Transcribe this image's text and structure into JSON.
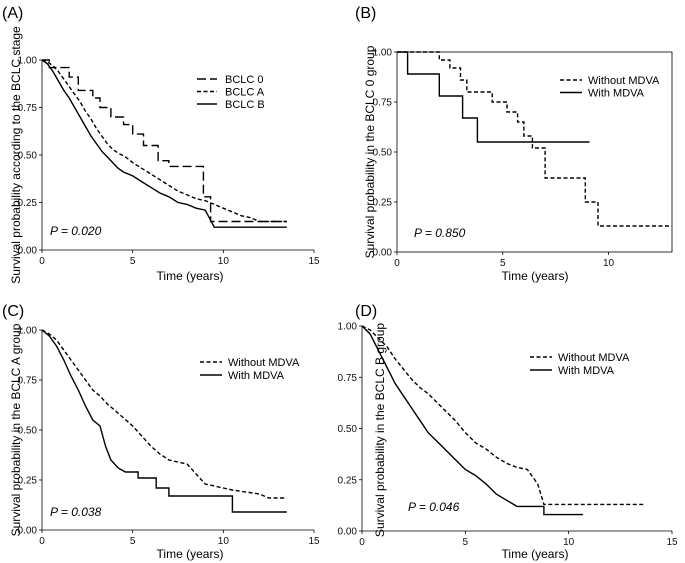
{
  "chart_data": [
    {
      "type": "line",
      "panel_label": "(A)",
      "xlabel": "Time (years)",
      "ylabel": "Survival probability according to the BCLC stage",
      "xlim": [
        0,
        15
      ],
      "ylim": [
        0,
        1
      ],
      "xticks": [
        "0",
        "5",
        "10",
        "15"
      ],
      "yticks": [
        "0.00",
        "0.25",
        "0.50",
        "0.75",
        "1.00"
      ],
      "annotation": "P = 0.020",
      "series": [
        {
          "name": "BCLC 0",
          "dash": "longdash",
          "points": [
            [
              0,
              1
            ],
            [
              0.4,
              1
            ],
            [
              0.4,
              0.96
            ],
            [
              1.5,
              0.96
            ],
            [
              1.5,
              0.91
            ],
            [
              2,
              0.91
            ],
            [
              2,
              0.84
            ],
            [
              2.8,
              0.84
            ],
            [
              2.8,
              0.8
            ],
            [
              3.2,
              0.8
            ],
            [
              3.2,
              0.75
            ],
            [
              3.8,
              0.75
            ],
            [
              3.8,
              0.7
            ],
            [
              4.5,
              0.7
            ],
            [
              4.5,
              0.66
            ],
            [
              5,
              0.66
            ],
            [
              5,
              0.61
            ],
            [
              5.6,
              0.61
            ],
            [
              5.6,
              0.55
            ],
            [
              6.4,
              0.55
            ],
            [
              6.4,
              0.47
            ],
            [
              7,
              0.47
            ],
            [
              7,
              0.44
            ],
            [
              8.9,
              0.44
            ],
            [
              8.9,
              0.28
            ],
            [
              9.3,
              0.28
            ],
            [
              9.3,
              0.15
            ],
            [
              13.5,
              0.15
            ]
          ]
        },
        {
          "name": "BCLC A",
          "dash": "dashed",
          "points": [
            [
              0,
              1
            ],
            [
              0.3,
              0.99
            ],
            [
              0.6,
              0.97
            ],
            [
              0.9,
              0.94
            ],
            [
              1.2,
              0.9
            ],
            [
              1.5,
              0.86
            ],
            [
              1.8,
              0.82
            ],
            [
              2.1,
              0.78
            ],
            [
              2.4,
              0.73
            ],
            [
              2.7,
              0.69
            ],
            [
              3,
              0.64
            ],
            [
              3.3,
              0.6
            ],
            [
              3.6,
              0.56
            ],
            [
              3.9,
              0.53
            ],
            [
              4.2,
              0.51
            ],
            [
              4.6,
              0.49
            ],
            [
              5,
              0.46
            ],
            [
              5.5,
              0.43
            ],
            [
              6,
              0.4
            ],
            [
              6.5,
              0.37
            ],
            [
              7,
              0.34
            ],
            [
              7.5,
              0.31
            ],
            [
              8,
              0.29
            ],
            [
              8.5,
              0.27
            ],
            [
              9,
              0.26
            ],
            [
              9.5,
              0.24
            ],
            [
              10,
              0.22
            ],
            [
              10.5,
              0.2
            ],
            [
              11,
              0.18
            ],
            [
              11.5,
              0.17
            ],
            [
              12,
              0.15
            ],
            [
              13.5,
              0.15
            ]
          ]
        },
        {
          "name": "BCLC B",
          "dash": "solid",
          "points": [
            [
              0,
              1
            ],
            [
              0.3,
              0.98
            ],
            [
              0.6,
              0.94
            ],
            [
              0.9,
              0.89
            ],
            [
              1.2,
              0.84
            ],
            [
              1.5,
              0.8
            ],
            [
              1.8,
              0.75
            ],
            [
              2.1,
              0.7
            ],
            [
              2.4,
              0.65
            ],
            [
              2.7,
              0.6
            ],
            [
              3,
              0.56
            ],
            [
              3.3,
              0.52
            ],
            [
              3.6,
              0.49
            ],
            [
              3.9,
              0.46
            ],
            [
              4.2,
              0.43
            ],
            [
              4.5,
              0.41
            ],
            [
              5,
              0.39
            ],
            [
              5.5,
              0.36
            ],
            [
              6,
              0.33
            ],
            [
              6.5,
              0.3
            ],
            [
              7,
              0.28
            ],
            [
              7.5,
              0.25
            ],
            [
              8,
              0.24
            ],
            [
              8.5,
              0.22
            ],
            [
              9,
              0.21
            ],
            [
              9.5,
              0.12
            ],
            [
              13.5,
              0.12
            ]
          ]
        }
      ]
    },
    {
      "type": "line",
      "panel_label": "(B)",
      "xlabel": "Time (years)",
      "ylabel": "Survival probability in the BCLC 0 group",
      "xlim": [
        0,
        13
      ],
      "ylim": [
        0,
        1
      ],
      "xticks": [
        "0",
        "5",
        "10"
      ],
      "yticks": [
        "0.00",
        "0.25",
        "0.50",
        "0.75",
        "1.00"
      ],
      "annotation": "P = 0.850",
      "series": [
        {
          "name": "Without MDVA",
          "dash": "dashed",
          "points": [
            [
              0,
              1
            ],
            [
              2,
              1
            ],
            [
              2,
              0.96
            ],
            [
              2.5,
              0.96
            ],
            [
              2.5,
              0.92
            ],
            [
              3,
              0.92
            ],
            [
              3,
              0.86
            ],
            [
              3.3,
              0.86
            ],
            [
              3.3,
              0.8
            ],
            [
              4.5,
              0.8
            ],
            [
              4.5,
              0.75
            ],
            [
              5.2,
              0.75
            ],
            [
              5.2,
              0.7
            ],
            [
              5.7,
              0.7
            ],
            [
              5.7,
              0.65
            ],
            [
              6,
              0.65
            ],
            [
              6,
              0.58
            ],
            [
              6.4,
              0.58
            ],
            [
              6.4,
              0.52
            ],
            [
              7,
              0.52
            ],
            [
              7,
              0.37
            ],
            [
              8.9,
              0.37
            ],
            [
              8.9,
              0.25
            ],
            [
              9.5,
              0.25
            ],
            [
              9.5,
              0.13
            ],
            [
              13,
              0.13
            ]
          ]
        },
        {
          "name": "With MDVA",
          "dash": "solid",
          "points": [
            [
              0,
              1
            ],
            [
              0.5,
              1
            ],
            [
              0.5,
              0.89
            ],
            [
              2,
              0.89
            ],
            [
              2,
              0.78
            ],
            [
              3.1,
              0.78
            ],
            [
              3.1,
              0.67
            ],
            [
              3.8,
              0.67
            ],
            [
              3.8,
              0.55
            ],
            [
              9.1,
              0.55
            ]
          ]
        }
      ]
    },
    {
      "type": "line",
      "panel_label": "(C)",
      "xlabel": "Time (years)",
      "ylabel": "Survival probability in the BCLC A group",
      "xlim": [
        0,
        15
      ],
      "ylim": [
        0,
        1
      ],
      "xticks": [
        "0",
        "5",
        "10",
        "15"
      ],
      "yticks": [
        "0.00",
        "0.25",
        "0.50",
        "0.75",
        "1.00"
      ],
      "annotation": "P = 0.038",
      "series": [
        {
          "name": "Without MDVA",
          "dash": "dashed",
          "points": [
            [
              0,
              1
            ],
            [
              0.4,
              0.98
            ],
            [
              0.8,
              0.95
            ],
            [
              1.2,
              0.9
            ],
            [
              1.6,
              0.85
            ],
            [
              2,
              0.8
            ],
            [
              2.4,
              0.75
            ],
            [
              2.8,
              0.7
            ],
            [
              3.2,
              0.67
            ],
            [
              3.6,
              0.63
            ],
            [
              4,
              0.6
            ],
            [
              4.5,
              0.56
            ],
            [
              5,
              0.52
            ],
            [
              5.5,
              0.47
            ],
            [
              6,
              0.42
            ],
            [
              6.5,
              0.38
            ],
            [
              7,
              0.35
            ],
            [
              7.5,
              0.34
            ],
            [
              8,
              0.33
            ],
            [
              8.5,
              0.28
            ],
            [
              9,
              0.23
            ],
            [
              9.5,
              0.22
            ],
            [
              10,
              0.21
            ],
            [
              10.5,
              0.2
            ],
            [
              12,
              0.18
            ],
            [
              12.5,
              0.16
            ],
            [
              13.5,
              0.16
            ]
          ]
        },
        {
          "name": "With MDVA",
          "dash": "solid",
          "points": [
            [
              0,
              1
            ],
            [
              0.4,
              0.97
            ],
            [
              0.8,
              0.92
            ],
            [
              1.2,
              0.85
            ],
            [
              1.6,
              0.77
            ],
            [
              2,
              0.7
            ],
            [
              2.4,
              0.62
            ],
            [
              2.8,
              0.55
            ],
            [
              3.2,
              0.52
            ],
            [
              3.5,
              0.42
            ],
            [
              3.8,
              0.35
            ],
            [
              4.2,
              0.31
            ],
            [
              4.6,
              0.29
            ],
            [
              5.3,
              0.29
            ],
            [
              5.3,
              0.26
            ],
            [
              6.3,
              0.26
            ],
            [
              6.3,
              0.21
            ],
            [
              7,
              0.21
            ],
            [
              7,
              0.17
            ],
            [
              10.5,
              0.17
            ],
            [
              10.5,
              0.09
            ],
            [
              13.5,
              0.09
            ]
          ]
        }
      ]
    },
    {
      "type": "line",
      "panel_label": "(D)",
      "xlabel": "Time (years)",
      "ylabel": "Survival probability in the BCLC B group",
      "xlim": [
        0,
        15
      ],
      "ylim": [
        0,
        1
      ],
      "xticks": [
        "0",
        "5",
        "10",
        "15"
      ],
      "yticks": [
        "0.00",
        "0.25",
        "0.50",
        "0.75",
        "1.00"
      ],
      "annotation": "P = 0.046",
      "series": [
        {
          "name": "Without MDVA",
          "dash": "dashed",
          "points": [
            [
              0,
              1
            ],
            [
              0.4,
              0.98
            ],
            [
              0.8,
              0.94
            ],
            [
              1.2,
              0.9
            ],
            [
              1.6,
              0.84
            ],
            [
              2,
              0.79
            ],
            [
              2.4,
              0.74
            ],
            [
              2.8,
              0.7
            ],
            [
              3.2,
              0.67
            ],
            [
              3.6,
              0.63
            ],
            [
              4,
              0.59
            ],
            [
              4.5,
              0.54
            ],
            [
              5,
              0.48
            ],
            [
              5.5,
              0.43
            ],
            [
              6,
              0.4
            ],
            [
              6.5,
              0.36
            ],
            [
              7,
              0.33
            ],
            [
              7.5,
              0.31
            ],
            [
              8,
              0.3
            ],
            [
              8.5,
              0.23
            ],
            [
              8.8,
              0.13
            ],
            [
              13.7,
              0.13
            ]
          ]
        },
        {
          "name": "With MDVA",
          "dash": "solid",
          "points": [
            [
              0,
              1
            ],
            [
              0.4,
              0.96
            ],
            [
              0.8,
              0.88
            ],
            [
              1.2,
              0.8
            ],
            [
              1.6,
              0.72
            ],
            [
              2,
              0.66
            ],
            [
              2.4,
              0.6
            ],
            [
              2.8,
              0.54
            ],
            [
              3.2,
              0.48
            ],
            [
              3.6,
              0.44
            ],
            [
              4,
              0.4
            ],
            [
              4.5,
              0.35
            ],
            [
              5,
              0.3
            ],
            [
              5.5,
              0.27
            ],
            [
              6,
              0.23
            ],
            [
              6.5,
              0.18
            ],
            [
              7,
              0.15
            ],
            [
              7.5,
              0.12
            ],
            [
              8.8,
              0.12
            ],
            [
              8.8,
              0.08
            ],
            [
              10.7,
              0.08
            ]
          ]
        }
      ]
    }
  ]
}
